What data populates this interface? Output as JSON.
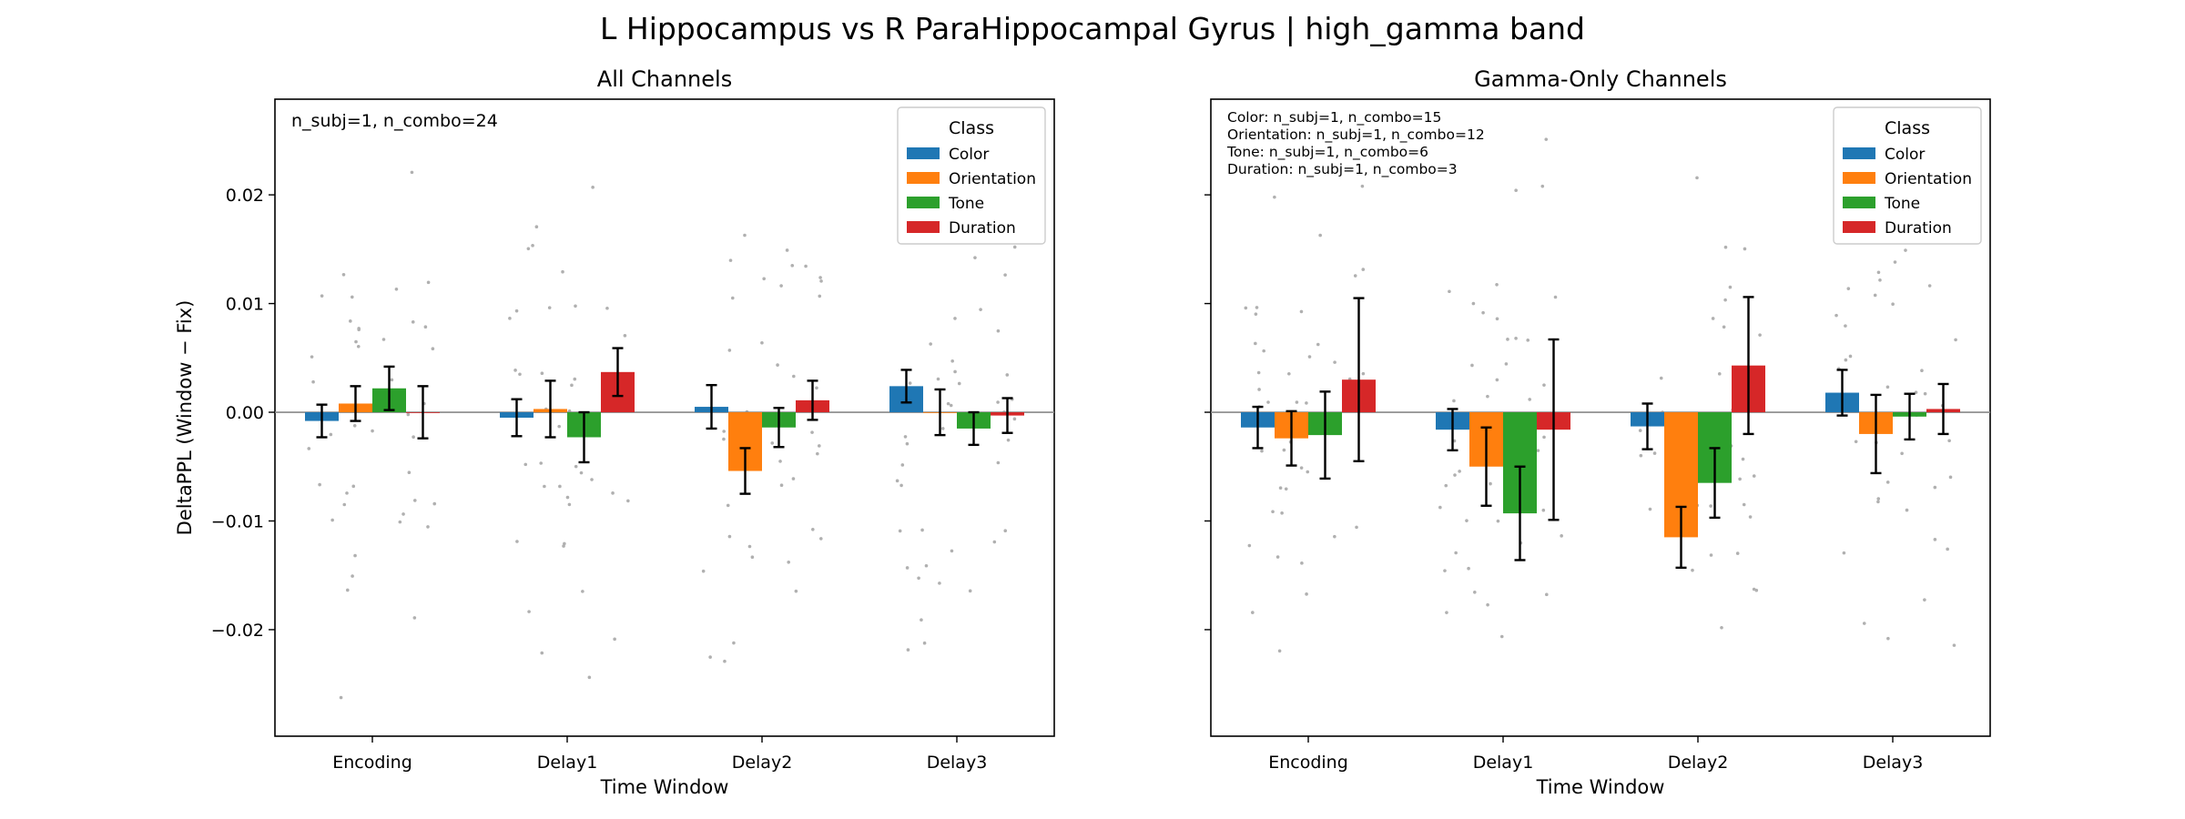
{
  "figure": {
    "suptitle": "L Hippocampus vs R ParaHippocampal Gyrus  |  high_gamma band"
  },
  "colors": {
    "Color": "#1f77b4",
    "Orientation": "#ff7f0e",
    "Tone": "#2ca02c",
    "Duration": "#d62728",
    "points": "#b0b0b0",
    "zero_line": "#888888",
    "error_bars": "#000000"
  },
  "chart_data": [
    {
      "type": "bar",
      "title": "All Channels",
      "xlabel": "Time Window",
      "ylabel": "DeltaPPL (Window − Fix)",
      "categories": [
        "Encoding",
        "Delay1",
        "Delay2",
        "Delay3"
      ],
      "ylim": [
        -0.0298,
        0.0288
      ],
      "yticks": [
        -0.02,
        -0.01,
        0.0,
        0.01,
        0.02
      ],
      "ytick_labels": [
        "−0.02",
        "−0.01",
        "0.00",
        "0.01",
        "0.02"
      ],
      "grid": false,
      "legend": {
        "title": "Class",
        "position": "top-right"
      },
      "annotation": [
        "n_subj=1, n_combo=24"
      ],
      "series": [
        {
          "name": "Color",
          "values": [
            -0.0008,
            -0.0005,
            0.0005,
            0.0024
          ],
          "err": [
            0.0015,
            0.0017,
            0.002,
            0.0015
          ]
        },
        {
          "name": "Orientation",
          "values": [
            0.0008,
            0.0003,
            -0.0054,
            0.0
          ],
          "err": [
            0.0016,
            0.0026,
            0.0021,
            0.0021
          ]
        },
        {
          "name": "Tone",
          "values": [
            0.0022,
            -0.0023,
            -0.0014,
            -0.0015
          ],
          "err": [
            0.002,
            0.0023,
            0.0018,
            0.0015
          ]
        },
        {
          "name": "Duration",
          "values": [
            0.0,
            0.0037,
            0.0011,
            -0.0003
          ],
          "err": [
            0.0024,
            0.0022,
            0.0018,
            0.0016
          ]
        }
      ]
    },
    {
      "type": "bar",
      "title": "Gamma-Only Channels",
      "xlabel": "Time Window",
      "ylabel": "",
      "categories": [
        "Encoding",
        "Delay1",
        "Delay2",
        "Delay3"
      ],
      "ylim": [
        -0.0298,
        0.0288
      ],
      "yticks": [
        -0.02,
        -0.01,
        0.0,
        0.01,
        0.02
      ],
      "ytick_labels": [
        "",
        "",
        "",
        "",
        ""
      ],
      "grid": false,
      "legend": {
        "title": "Class",
        "position": "top-right"
      },
      "annotation": [
        "Color: n_subj=1, n_combo=15",
        "Orientation: n_subj=1, n_combo=12",
        "Tone: n_subj=1, n_combo=6",
        "Duration: n_subj=1, n_combo=3"
      ],
      "series": [
        {
          "name": "Color",
          "values": [
            -0.0014,
            -0.0016,
            -0.0013,
            0.0018
          ],
          "err": [
            0.0019,
            0.0019,
            0.0021,
            0.0021
          ]
        },
        {
          "name": "Orientation",
          "values": [
            -0.0024,
            -0.005,
            -0.0115,
            -0.002
          ],
          "err": [
            0.0025,
            0.0036,
            0.0028,
            0.0036
          ]
        },
        {
          "name": "Tone",
          "values": [
            -0.0021,
            -0.0093,
            -0.0065,
            -0.0004
          ],
          "err": [
            0.004,
            0.0043,
            0.0032,
            0.0021
          ]
        },
        {
          "name": "Duration",
          "values": [
            0.003,
            -0.0016,
            0.0043,
            0.0003
          ],
          "err": [
            0.0075,
            0.0083,
            0.0063,
            0.0023
          ]
        }
      ]
    }
  ]
}
